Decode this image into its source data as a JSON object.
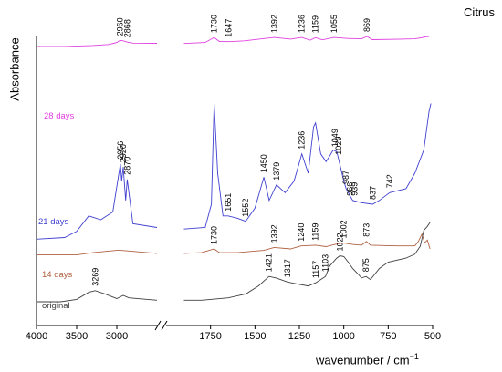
{
  "chart_data": {
    "type": "line",
    "title": "Citrus",
    "xlabel": "wavenumber / cm",
    "xlabel_sup": "−1",
    "ylabel": "Absorbance",
    "x_segments": [
      {
        "xlim": [
          4000,
          2500
        ],
        "ticks": [
          4000,
          3500,
          3000
        ]
      },
      {
        "xlim": [
          2000,
          500
        ],
        "ticks": [
          1750,
          1500,
          1250,
          1000,
          750,
          500
        ]
      }
    ],
    "axis_break": true,
    "grid": false,
    "series": [
      {
        "name": "28 days",
        "color": "#e040e0",
        "points": [
          [
            4000,
            0.5
          ],
          [
            3600,
            0.49
          ],
          [
            3300,
            0.45
          ],
          [
            3100,
            0.4
          ],
          [
            3000,
            0.3
          ],
          [
            2960,
            0.2
          ],
          [
            2920,
            0.22
          ],
          [
            2868,
            0.28
          ],
          [
            2800,
            0.33
          ],
          [
            2500,
            0.34
          ],
          [
            1900,
            0.35
          ],
          [
            1780,
            0.3
          ],
          [
            1730,
            0.05
          ],
          [
            1700,
            0.25
          ],
          [
            1647,
            0.26
          ],
          [
            1560,
            0.22
          ],
          [
            1460,
            0.12
          ],
          [
            1392,
            0.05
          ],
          [
            1300,
            0.13
          ],
          [
            1236,
            0.05
          ],
          [
            1190,
            0.18
          ],
          [
            1159,
            0.06
          ],
          [
            1120,
            0.17
          ],
          [
            1055,
            0.05
          ],
          [
            980,
            0.1
          ],
          [
            900,
            0.12
          ],
          [
            869,
            0.0
          ],
          [
            840,
            0.16
          ],
          [
            700,
            0.14
          ],
          [
            600,
            0.12
          ],
          [
            560,
            0.06
          ],
          [
            530,
            0.0
          ],
          [
            520,
            0.01
          ]
        ],
        "annotations": [
          {
            "x": 2960,
            "label": "2960"
          },
          {
            "x": 2868,
            "label": "2868"
          },
          {
            "x": 1730,
            "label": "1730"
          },
          {
            "x": 1647,
            "label": "1647"
          },
          {
            "x": 1392,
            "label": "1392"
          },
          {
            "x": 1236,
            "label": "1236"
          },
          {
            "x": 1159,
            "label": "1159"
          },
          {
            "x": 1055,
            "label": "1055"
          },
          {
            "x": 869,
            "label": "869"
          }
        ]
      },
      {
        "name": "21 days",
        "color": "#4040d0",
        "points": [
          [
            4000,
            2.05
          ],
          [
            3650,
            2.03
          ],
          [
            3500,
            1.95
          ],
          [
            3350,
            1.75
          ],
          [
            3200,
            1.8
          ],
          [
            3050,
            1.7
          ],
          [
            2956,
            1.08
          ],
          [
            2940,
            1.3
          ],
          [
            2920,
            1.12
          ],
          [
            2890,
            1.55
          ],
          [
            2870,
            1.28
          ],
          [
            2800,
            1.85
          ],
          [
            2500,
            1.9
          ],
          [
            1900,
            1.92
          ],
          [
            1780,
            1.9
          ],
          [
            1745,
            1.6
          ],
          [
            1730,
            0.3
          ],
          [
            1710,
            1.2
          ],
          [
            1680,
            1.75
          ],
          [
            1651,
            1.75
          ],
          [
            1600,
            1.78
          ],
          [
            1552,
            1.82
          ],
          [
            1500,
            1.65
          ],
          [
            1450,
            1.25
          ],
          [
            1420,
            1.55
          ],
          [
            1379,
            1.35
          ],
          [
            1330,
            1.45
          ],
          [
            1280,
            1.3
          ],
          [
            1236,
            0.95
          ],
          [
            1200,
            1.2
          ],
          [
            1170,
            0.6
          ],
          [
            1159,
            0.55
          ],
          [
            1130,
            0.95
          ],
          [
            1100,
            1.05
          ],
          [
            1080,
            0.98
          ],
          [
            1060,
            0.9
          ],
          [
            1040,
            0.92
          ],
          [
            1029,
            1.02
          ],
          [
            1000,
            1.3
          ],
          [
            987,
            1.4
          ],
          [
            950,
            1.55
          ],
          [
            900,
            1.58
          ],
          [
            837,
            1.6
          ],
          [
            800,
            1.55
          ],
          [
            742,
            1.45
          ],
          [
            650,
            1.4
          ],
          [
            600,
            1.2
          ],
          [
            550,
            0.9
          ],
          [
            520,
            0.4
          ],
          [
            510,
            0.3
          ]
        ],
        "annotations": [
          {
            "x": 2956,
            "label": "2956"
          },
          {
            "x": 2920,
            "label": "2920"
          },
          {
            "x": 2870,
            "label": "2870"
          },
          {
            "x": 1651,
            "label": "1651"
          },
          {
            "x": 1552,
            "label": "1552"
          },
          {
            "x": 1450,
            "label": "1450"
          },
          {
            "x": 1379,
            "label": "1379"
          },
          {
            "x": 1236,
            "label": "1236"
          },
          {
            "x": 1049,
            "label": "1049"
          },
          {
            "x": 939,
            "label": "939"
          },
          {
            "x": 966,
            "label": "966"
          },
          {
            "x": 1029,
            "label": "1029"
          },
          {
            "x": 987,
            "label": "987"
          },
          {
            "x": 837,
            "label": "837"
          },
          {
            "x": 742,
            "label": "742"
          }
        ]
      },
      {
        "name": "14 days",
        "color": "#b06040",
        "points": [
          [
            4000,
            2.58
          ],
          [
            3500,
            2.58
          ],
          [
            3300,
            2.55
          ],
          [
            3000,
            2.52
          ],
          [
            2950,
            2.52
          ],
          [
            2500,
            2.56
          ],
          [
            1900,
            2.56
          ],
          [
            1800,
            2.55
          ],
          [
            1730,
            2.5
          ],
          [
            1700,
            2.55
          ],
          [
            1600,
            2.55
          ],
          [
            1450,
            2.52
          ],
          [
            1392,
            2.48
          ],
          [
            1300,
            2.5
          ],
          [
            1240,
            2.46
          ],
          [
            1159,
            2.45
          ],
          [
            1100,
            2.47
          ],
          [
            1050,
            2.44
          ],
          [
            1002,
            2.42
          ],
          [
            950,
            2.44
          ],
          [
            900,
            2.45
          ],
          [
            873,
            2.4
          ],
          [
            850,
            2.45
          ],
          [
            700,
            2.46
          ],
          [
            600,
            2.46
          ],
          [
            580,
            2.4
          ],
          [
            560,
            2.3
          ],
          [
            545,
            2.42
          ],
          [
            530,
            2.38
          ],
          [
            515,
            2.5
          ]
        ],
        "annotations": [
          {
            "x": 1730,
            "label": "1730"
          },
          {
            "x": 1392,
            "label": "1392"
          },
          {
            "x": 1240,
            "label": "1240"
          },
          {
            "x": 1159,
            "label": "1159"
          },
          {
            "x": 1002,
            "label": "1002"
          },
          {
            "x": 873,
            "label": "873"
          }
        ]
      },
      {
        "name": "original",
        "color": "#404040",
        "points": [
          [
            4000,
            3.0
          ],
          [
            3700,
            3.0
          ],
          [
            3500,
            2.97
          ],
          [
            3350,
            2.88
          ],
          [
            3269,
            2.86
          ],
          [
            3150,
            2.9
          ],
          [
            3000,
            2.96
          ],
          [
            2920,
            2.92
          ],
          [
            2850,
            2.95
          ],
          [
            2500,
            2.98
          ],
          [
            1900,
            2.98
          ],
          [
            1800,
            2.98
          ],
          [
            1750,
            2.97
          ],
          [
            1650,
            2.95
          ],
          [
            1550,
            2.9
          ],
          [
            1480,
            2.8
          ],
          [
            1421,
            2.68
          ],
          [
            1380,
            2.7
          ],
          [
            1317,
            2.75
          ],
          [
            1250,
            2.78
          ],
          [
            1200,
            2.8
          ],
          [
            1157,
            2.76
          ],
          [
            1130,
            2.72
          ],
          [
            1103,
            2.68
          ],
          [
            1080,
            2.55
          ],
          [
            1040,
            2.45
          ],
          [
            1022,
            2.42
          ],
          [
            1000,
            2.43
          ],
          [
            975,
            2.5
          ],
          [
            950,
            2.58
          ],
          [
            920,
            2.65
          ],
          [
            900,
            2.7
          ],
          [
            875,
            2.68
          ],
          [
            850,
            2.72
          ],
          [
            800,
            2.58
          ],
          [
            750,
            2.5
          ],
          [
            650,
            2.45
          ],
          [
            600,
            2.4
          ],
          [
            570,
            2.3
          ],
          [
            550,
            2.1
          ],
          [
            530,
            2.05
          ],
          [
            515,
            2.0
          ]
        ],
        "annotations": [
          {
            "x": 3269,
            "label": "3269"
          },
          {
            "x": 1421,
            "label": "1421"
          },
          {
            "x": 1317,
            "label": "1317"
          },
          {
            "x": 1157,
            "label": "1157"
          },
          {
            "x": 1103,
            "label": "1103"
          },
          {
            "x": 1022,
            "label": "1022"
          },
          {
            "x": 875,
            "label": "875"
          }
        ]
      }
    ]
  }
}
